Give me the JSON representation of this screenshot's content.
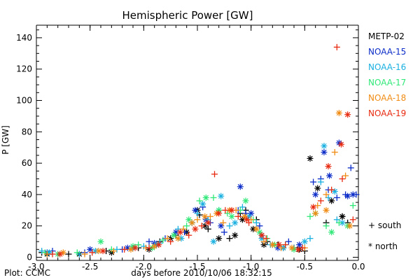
{
  "chart_data": {
    "type": "scatter",
    "title": "Hemispheric Power [GW]",
    "xlabel": "days before 2010/10/06 18:32:15",
    "ylabel": "P [GW]",
    "xlim": [
      -3.0,
      0.0
    ],
    "ylim": [
      -2,
      148
    ],
    "x_ticks": [
      "-3.0",
      "-2.5",
      "-2.0",
      "-1.5",
      "-1.0",
      "-0.5",
      "0.0"
    ],
    "y_ticks": [
      "0",
      "20",
      "40",
      "60",
      "80",
      "100",
      "120",
      "140"
    ],
    "x_tick_values": [
      -3.0,
      -2.5,
      -2.0,
      -1.5,
      -1.0,
      -0.5,
      0.0
    ],
    "y_tick_values": [
      0,
      20,
      40,
      60,
      80,
      100,
      120,
      140
    ],
    "grid": false,
    "legend_placement": "right",
    "marker_key": [
      {
        "marker": "+",
        "label": "+ south"
      },
      {
        "marker": "*",
        "label": "* north"
      }
    ],
    "series": [
      {
        "name": "METP-02",
        "color": "#000000",
        "south": [
          [
            -2.95,
            3
          ],
          [
            -2.7,
            2
          ],
          [
            -2.35,
            4
          ],
          [
            -2.05,
            6
          ],
          [
            -1.85,
            10
          ],
          [
            -1.7,
            14
          ],
          [
            -1.55,
            22
          ],
          [
            -1.48,
            27
          ],
          [
            -1.4,
            18
          ],
          [
            -1.2,
            12
          ],
          [
            -1.1,
            28
          ],
          [
            -1.05,
            30
          ],
          [
            -0.95,
            24
          ],
          [
            -0.85,
            10
          ],
          [
            -0.75,
            8
          ],
          [
            -0.6,
            6
          ],
          [
            -0.5,
            4
          ],
          [
            -0.3,
            22
          ],
          [
            -0.15,
            26
          ],
          [
            -0.1,
            22
          ]
        ],
        "north": [
          [
            -2.9,
            2
          ],
          [
            -2.6,
            2
          ],
          [
            -2.3,
            3
          ],
          [
            -1.95,
            5
          ],
          [
            -1.75,
            12
          ],
          [
            -1.6,
            16
          ],
          [
            -1.5,
            30
          ],
          [
            -1.43,
            20
          ],
          [
            -1.3,
            12
          ],
          [
            -1.15,
            14
          ],
          [
            -1.08,
            24
          ],
          [
            -0.98,
            18
          ],
          [
            -0.88,
            8
          ],
          [
            -0.7,
            6
          ],
          [
            -0.55,
            5
          ],
          [
            -0.45,
            63
          ],
          [
            -0.38,
            44
          ],
          [
            -0.25,
            36
          ],
          [
            -0.15,
            26
          ]
        ]
      },
      {
        "name": "NOAA-15",
        "color": "#0b2cc8",
        "south": [
          [
            -2.85,
            4
          ],
          [
            -2.55,
            3
          ],
          [
            -2.2,
            5
          ],
          [
            -1.95,
            10
          ],
          [
            -1.8,
            12
          ],
          [
            -1.62,
            16
          ],
          [
            -1.45,
            32
          ],
          [
            -1.38,
            22
          ],
          [
            -1.25,
            16
          ],
          [
            -1.12,
            30
          ],
          [
            -1.05,
            28
          ],
          [
            -0.92,
            20
          ],
          [
            -0.8,
            8
          ],
          [
            -0.65,
            10
          ],
          [
            -0.42,
            48
          ],
          [
            -0.35,
            50
          ],
          [
            -0.28,
            43
          ],
          [
            -0.2,
            38
          ],
          [
            -0.12,
            40
          ],
          [
            -0.07,
            57
          ],
          [
            -0.02,
            40
          ]
        ],
        "north": [
          [
            -2.9,
            3
          ],
          [
            -2.5,
            5
          ],
          [
            -2.15,
            6
          ],
          [
            -1.9,
            9
          ],
          [
            -1.7,
            16
          ],
          [
            -1.52,
            30
          ],
          [
            -1.42,
            24
          ],
          [
            -1.28,
            20
          ],
          [
            -1.1,
            45
          ],
          [
            -1.0,
            28
          ],
          [
            -0.9,
            14
          ],
          [
            -0.75,
            6
          ],
          [
            -0.55,
            8
          ],
          [
            -0.4,
            40
          ],
          [
            -0.32,
            67
          ],
          [
            -0.27,
            52
          ],
          [
            -0.18,
            73
          ],
          [
            -0.1,
            39
          ],
          [
            -0.05,
            40
          ]
        ]
      },
      {
        "name": "NOAA-16",
        "color": "#1ab0e0",
        "south": [
          [
            -2.95,
            4
          ],
          [
            -2.6,
            2
          ],
          [
            -2.25,
            5
          ],
          [
            -2.0,
            7
          ],
          [
            -1.85,
            9
          ],
          [
            -1.68,
            18
          ],
          [
            -1.5,
            28
          ],
          [
            -1.4,
            24
          ],
          [
            -1.3,
            30
          ],
          [
            -1.2,
            20
          ],
          [
            -1.08,
            32
          ],
          [
            -0.95,
            22
          ],
          [
            -0.82,
            8
          ],
          [
            -0.6,
            6
          ],
          [
            -0.45,
            12
          ],
          [
            -0.35,
            48
          ],
          [
            -0.28,
            38
          ],
          [
            -0.2,
            24
          ]
        ],
        "north": [
          [
            -2.88,
            3
          ],
          [
            -2.45,
            4
          ],
          [
            -2.1,
            6
          ],
          [
            -1.88,
            8
          ],
          [
            -1.65,
            12
          ],
          [
            -1.55,
            22
          ],
          [
            -1.45,
            34
          ],
          [
            -1.35,
            10
          ],
          [
            -1.28,
            39
          ],
          [
            -1.15,
            22
          ],
          [
            -1.02,
            26
          ],
          [
            -0.9,
            12
          ],
          [
            -0.7,
            6
          ],
          [
            -0.5,
            10
          ],
          [
            -0.32,
            71
          ],
          [
            -0.22,
            42
          ],
          [
            -0.15,
            22
          ]
        ]
      },
      {
        "name": "NOAA-17",
        "color": "#30e878",
        "south": [
          [
            -2.92,
            3
          ],
          [
            -2.62,
            3
          ],
          [
            -2.3,
            5
          ],
          [
            -2.05,
            8
          ],
          [
            -1.82,
            11
          ],
          [
            -1.6,
            20
          ],
          [
            -1.48,
            36
          ],
          [
            -1.35,
            38
          ],
          [
            -1.22,
            28
          ],
          [
            -1.1,
            30
          ],
          [
            -0.98,
            24
          ],
          [
            -0.85,
            12
          ],
          [
            -0.68,
            8
          ],
          [
            -0.45,
            26
          ],
          [
            -0.3,
            20
          ],
          [
            -0.18,
            22
          ],
          [
            -0.05,
            33
          ]
        ],
        "north": [
          [
            -2.8,
            2
          ],
          [
            -2.4,
            10
          ],
          [
            -2.1,
            7
          ],
          [
            -1.92,
            6
          ],
          [
            -1.72,
            14
          ],
          [
            -1.58,
            24
          ],
          [
            -1.42,
            38
          ],
          [
            -1.3,
            30
          ],
          [
            -1.18,
            26
          ],
          [
            -1.05,
            36
          ],
          [
            -0.92,
            16
          ],
          [
            -0.78,
            8
          ],
          [
            -0.6,
            5
          ],
          [
            -0.4,
            28
          ],
          [
            -0.25,
            16
          ],
          [
            -0.1,
            20
          ]
        ]
      },
      {
        "name": "NOAA-18",
        "color": "#f08c14",
        "south": [
          [
            -2.9,
            2
          ],
          [
            -2.55,
            2
          ],
          [
            -2.28,
            4
          ],
          [
            -1.98,
            6
          ],
          [
            -1.78,
            12
          ],
          [
            -1.63,
            18
          ],
          [
            -1.5,
            24
          ],
          [
            -1.38,
            26
          ],
          [
            -1.26,
            22
          ],
          [
            -1.14,
            30
          ],
          [
            -1.0,
            24
          ],
          [
            -0.88,
            10
          ],
          [
            -0.72,
            6
          ],
          [
            -0.5,
            6
          ],
          [
            -0.38,
            33
          ],
          [
            -0.3,
            40
          ],
          [
            -0.22,
            67
          ],
          [
            -0.12,
            52
          ]
        ],
        "north": [
          [
            -2.75,
            3
          ],
          [
            -2.42,
            4
          ],
          [
            -2.12,
            5
          ],
          [
            -1.9,
            7
          ],
          [
            -1.68,
            12
          ],
          [
            -1.55,
            22
          ],
          [
            -1.43,
            26
          ],
          [
            -1.32,
            28
          ],
          [
            -1.2,
            30
          ],
          [
            -1.06,
            26
          ],
          [
            -0.95,
            18
          ],
          [
            -0.8,
            8
          ],
          [
            -0.62,
            6
          ],
          [
            -0.4,
            28
          ],
          [
            -0.3,
            30
          ],
          [
            -0.18,
            92
          ],
          [
            -0.08,
            20
          ]
        ]
      },
      {
        "name": "NOAA-19",
        "color": "#e82a10",
        "south": [
          [
            -2.85,
            2
          ],
          [
            -2.48,
            3
          ],
          [
            -2.18,
            5
          ],
          [
            -1.95,
            6
          ],
          [
            -1.75,
            10
          ],
          [
            -1.58,
            14
          ],
          [
            -1.46,
            20
          ],
          [
            -1.34,
            53
          ],
          [
            -1.24,
            30
          ],
          [
            -1.12,
            26
          ],
          [
            -1.02,
            22
          ],
          [
            -0.86,
            12
          ],
          [
            -0.68,
            8
          ],
          [
            -0.52,
            6
          ],
          [
            -0.35,
            36
          ],
          [
            -0.25,
            43
          ],
          [
            -0.2,
            134
          ],
          [
            -0.15,
            50
          ],
          [
            -0.05,
            24
          ]
        ],
        "north": [
          [
            -2.78,
            2
          ],
          [
            -2.38,
            4
          ],
          [
            -2.08,
            6
          ],
          [
            -1.86,
            8
          ],
          [
            -1.66,
            16
          ],
          [
            -1.52,
            18
          ],
          [
            -1.4,
            22
          ],
          [
            -1.3,
            28
          ],
          [
            -1.18,
            30
          ],
          [
            -1.04,
            24
          ],
          [
            -0.9,
            14
          ],
          [
            -0.74,
            8
          ],
          [
            -0.56,
            5
          ],
          [
            -0.42,
            32
          ],
          [
            -0.28,
            58
          ],
          [
            -0.16,
            72
          ],
          [
            -0.1,
            91
          ]
        ]
      }
    ]
  },
  "footer": {
    "plot_credit": "Plot: CCMC"
  }
}
